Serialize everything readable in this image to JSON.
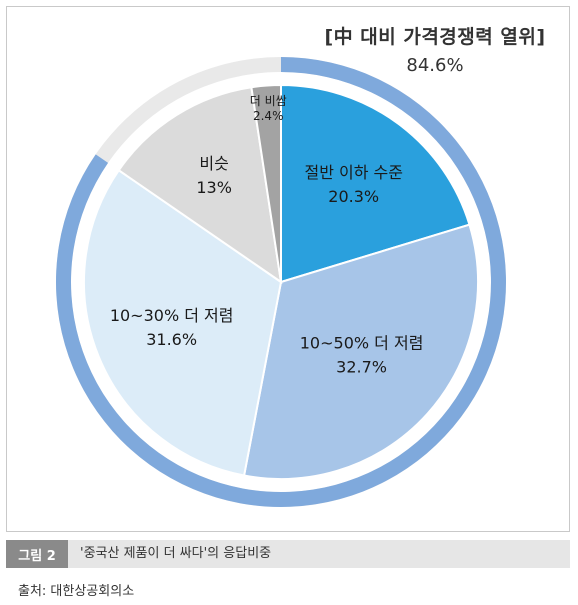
{
  "chart_data": {
    "type": "pie",
    "title": "",
    "annotation": {
      "label": "[中 대비 가격경쟁력 열위]",
      "value": "84.6%",
      "ring_color": "#7fa9dc"
    },
    "slices": [
      {
        "label": "절반 이하 수준",
        "value": 20.3,
        "display": "20.3%",
        "color": "#2aa0dd",
        "text_color": "#1a1a1a"
      },
      {
        "label": "10~50% 더 저렴",
        "value": 32.7,
        "display": "32.7%",
        "color": "#a7c5e8",
        "text_color": "#1a1a1a"
      },
      {
        "label": "10~30% 더 저렴",
        "value": 31.6,
        "display": "31.6%",
        "color": "#dcecf8",
        "text_color": "#1a1a1a"
      },
      {
        "label": "비슷",
        "value": 13,
        "display": "13%",
        "color": "#dbdbdb",
        "text_color": "#1a1a1a"
      },
      {
        "label": "더 비쌈",
        "value": 2.4,
        "display": "2.4%",
        "color": "#a3a3a3",
        "text_color": "#1a1a1a"
      }
    ]
  },
  "figure": {
    "badge": "그림 2",
    "caption": "'중국산 제품이 더 싸다'의 응답비중"
  },
  "source": "출처: 대한상공회의소"
}
